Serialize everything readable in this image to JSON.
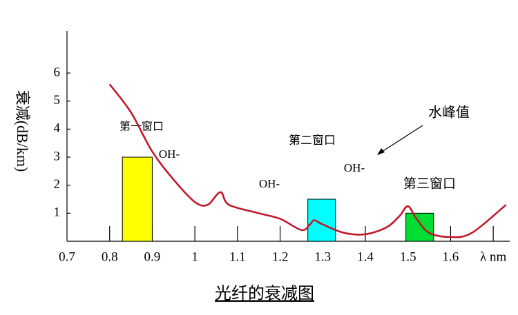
{
  "chart_data": {
    "type": "line",
    "title": "光纤的衰减图",
    "y_label": "衰减(dB/km)",
    "xlim": [
      0.7,
      1.75
    ],
    "ylim": [
      0,
      7.5
    ],
    "xticks": [
      0.7,
      0.8,
      0.9,
      1.0,
      1.1,
      1.2,
      1.3,
      1.4,
      1.5,
      1.6,
      {
        "value": 1.7,
        "label": "λ nm"
      }
    ],
    "yticks": [
      1,
      2,
      3,
      4,
      5,
      6
    ],
    "series": [
      {
        "color": "#c0182a",
        "x": [
          0.8,
          0.85,
          0.9,
          0.95,
          1.0,
          1.03,
          1.06,
          1.08,
          1.15,
          1.2,
          1.25,
          1.27,
          1.28,
          1.3,
          1.35,
          1.4,
          1.45,
          1.48,
          1.5,
          1.52,
          1.55,
          1.6,
          1.65,
          1.73
        ],
        "values": [
          5.6,
          4.6,
          3.2,
          2.2,
          1.4,
          1.3,
          1.75,
          1.3,
          1.0,
          0.8,
          0.4,
          0.6,
          0.75,
          0.6,
          0.3,
          0.25,
          0.5,
          0.9,
          1.25,
          0.8,
          0.3,
          0.15,
          0.3,
          1.3
        ]
      }
    ],
    "windows": [
      {
        "label": "第一窗口",
        "x0": 0.83,
        "x1": 0.9,
        "value": 3,
        "color": "#ffff00"
      },
      {
        "label": "第二窗口",
        "x0": 1.265,
        "x1": 1.33,
        "value": 1.5,
        "color": "#00ffff"
      },
      {
        "label": "第三窗口",
        "x0": 1.495,
        "x1": 1.56,
        "value": 1,
        "color": "#00dd33"
      }
    ],
    "annotations": [
      "OH-",
      "OH-",
      "OH-",
      "水峰值"
    ]
  }
}
